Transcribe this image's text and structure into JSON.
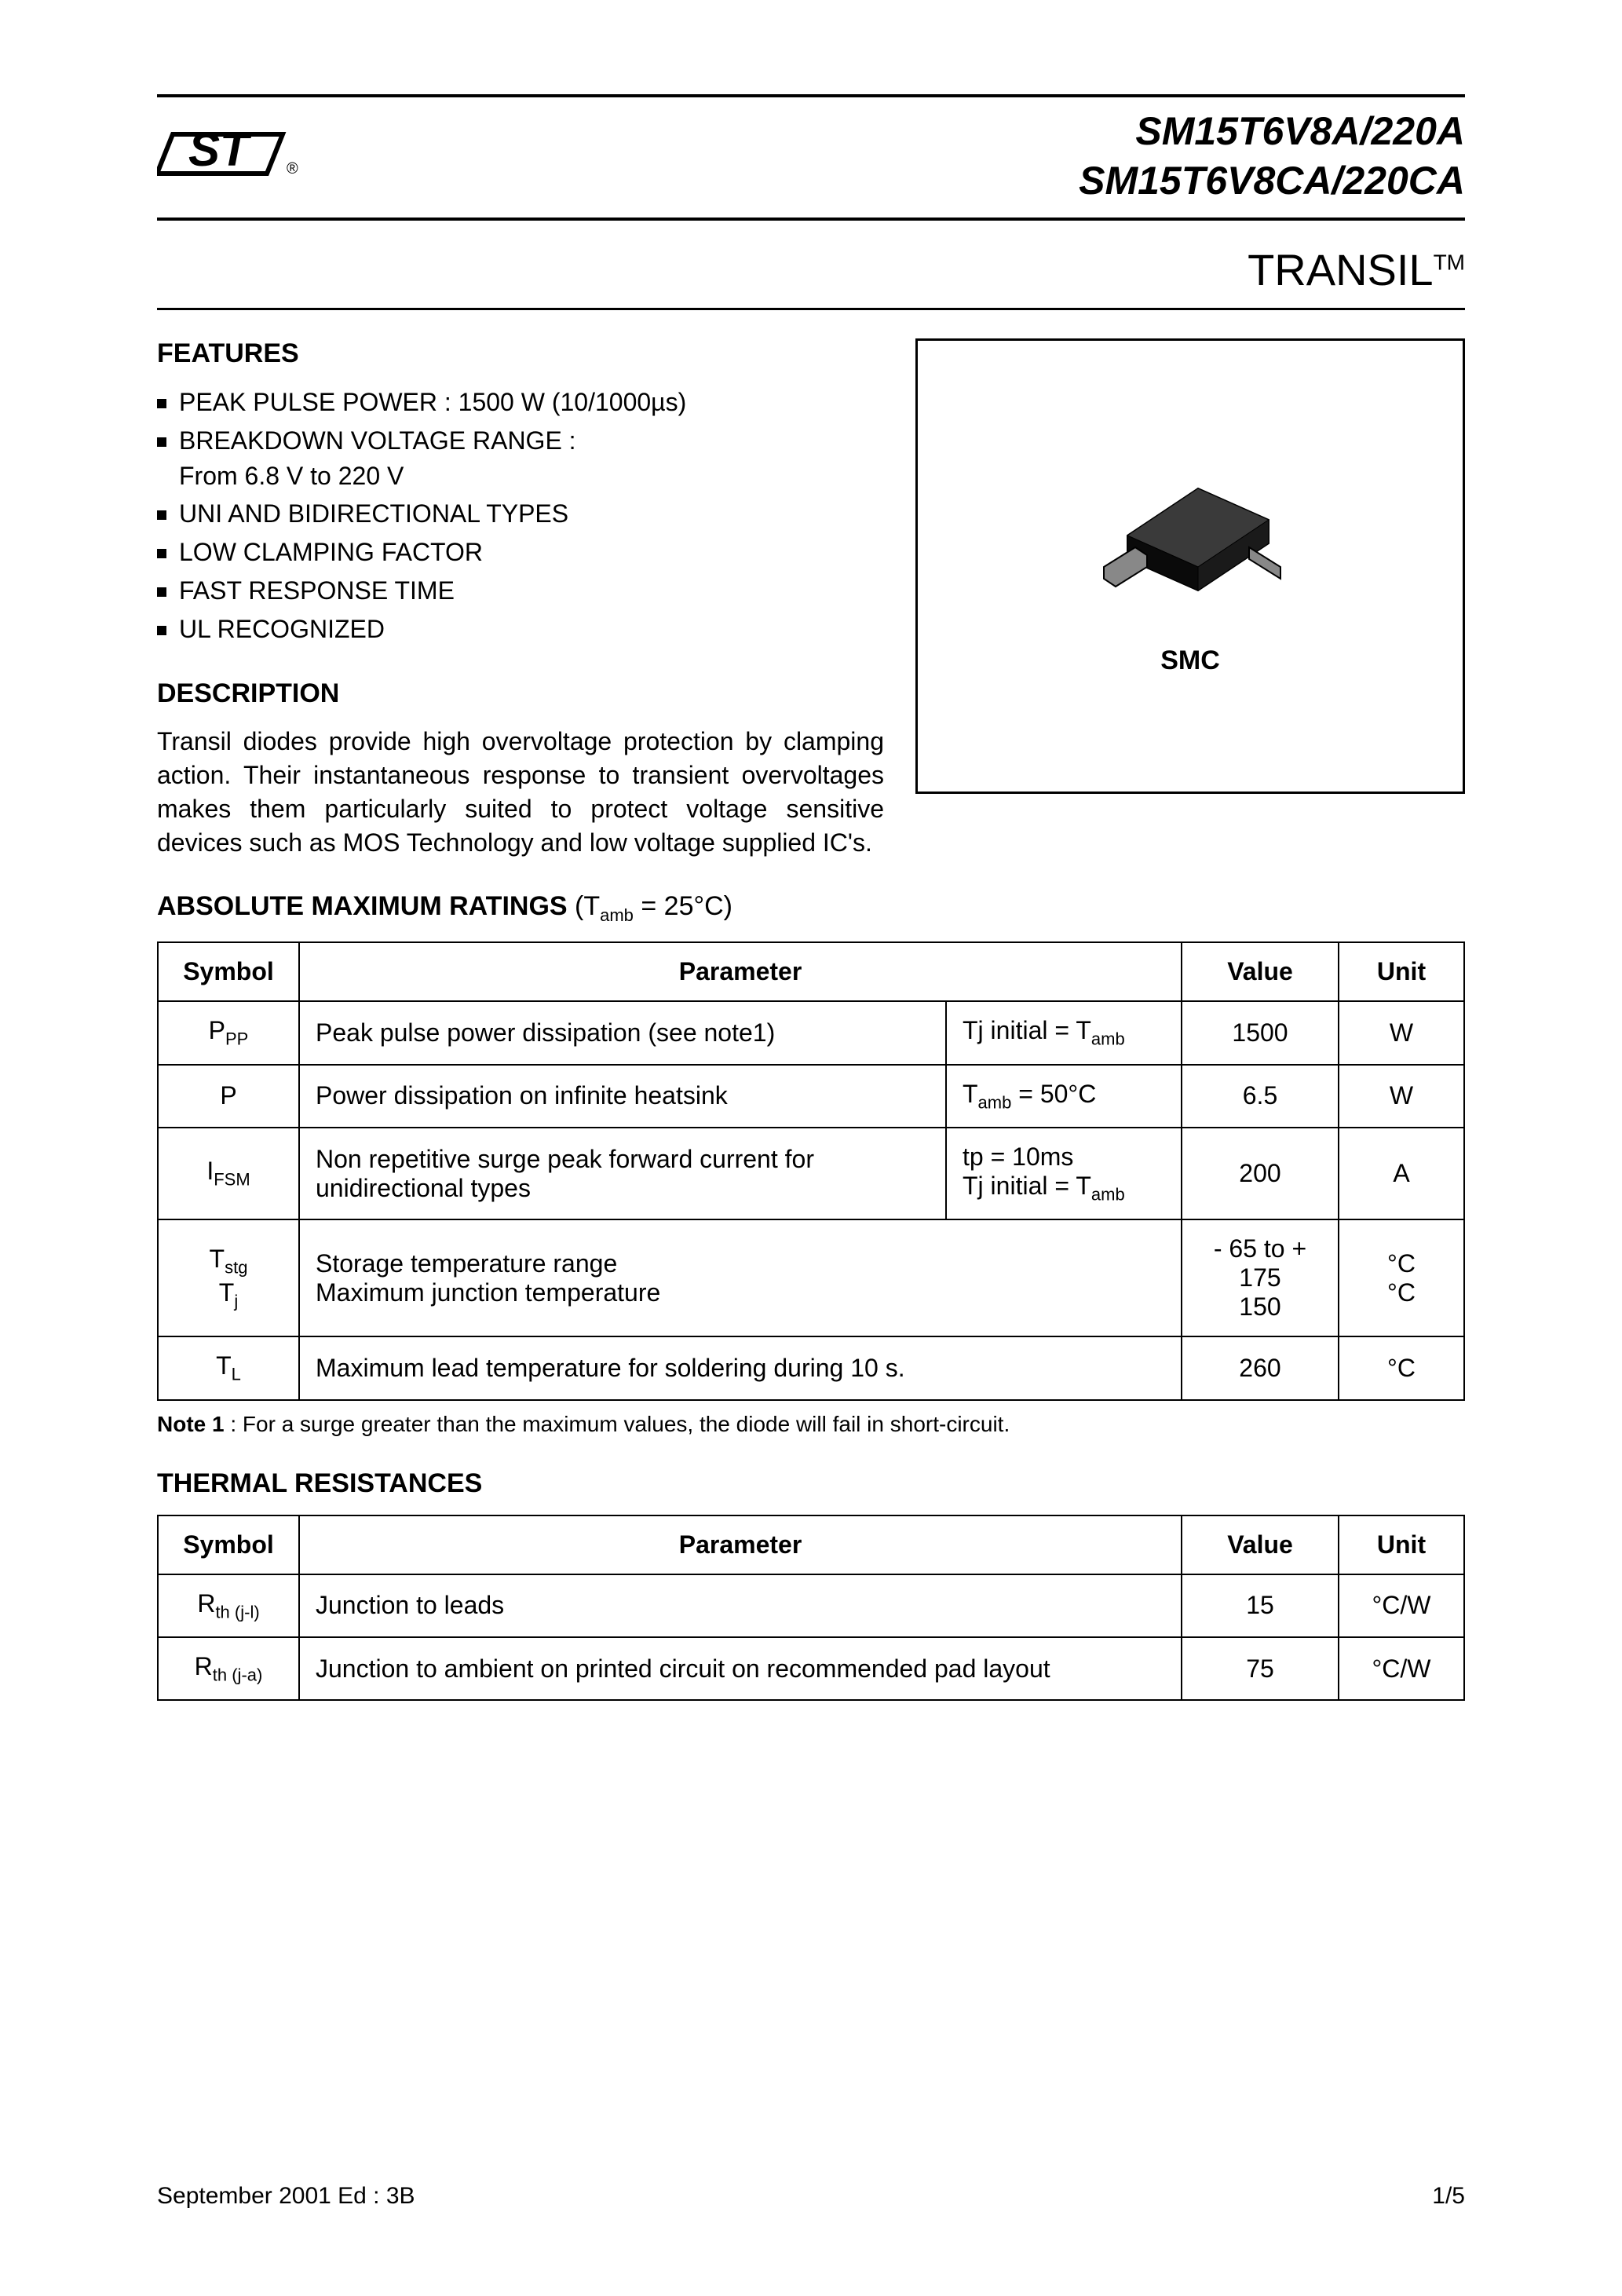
{
  "header": {
    "part_line1": "SM15T6V8A/220A",
    "part_line2": "SM15T6V8CA/220CA"
  },
  "subtitle": {
    "text": "TRANSIL",
    "tm": "TM"
  },
  "features": {
    "title": "FEATURES",
    "items": [
      "PEAK PULSE POWER : 1500 W  (10/1000µs)",
      "BREAKDOWN VOLTAGE RANGE :\nFrom 6.8 V to 220 V",
      "UNI AND BIDIRECTIONAL TYPES",
      "LOW CLAMPING FACTOR",
      "FAST RESPONSE TIME",
      "UL RECOGNIZED"
    ]
  },
  "description": {
    "title": "DESCRIPTION",
    "text": "Transil diodes provide high overvoltage protection by clamping action. Their instantaneous response to transient overvoltages makes them particularly suited to protect voltage sensitive devices such as MOS Technology and low voltage supplied IC's."
  },
  "package": {
    "label": "SMC"
  },
  "abs_max": {
    "title": "ABSOLUTE MAXIMUM RATINGS",
    "condition": "(Tamb = 25°C)",
    "columns": [
      "Symbol",
      "Parameter",
      "Value",
      "Unit"
    ],
    "rows": [
      {
        "symbol_html": "P<sub class='sub'>PP</sub>",
        "param": "Peak pulse power dissipation  (see note1)",
        "cond_html": "Tj initial = T<sub class='sub'>amb</sub>",
        "value": "1500",
        "unit": "W"
      },
      {
        "symbol_html": "P",
        "param": "Power dissipation on infinite heatsink",
        "cond_html": "T<sub class='sub'>amb</sub> = 50°C",
        "value": "6.5",
        "unit": "W"
      },
      {
        "symbol_html": "I<sub class='sub'>FSM</sub>",
        "param": "Non repetitive surge peak forward current for unidirectional types",
        "cond_html": "tp = 10ms<br>Tj initial = T<sub class='sub'>amb</sub>",
        "value": "200",
        "unit": "A"
      },
      {
        "symbol_html": "T<sub class='sub'>stg</sub><br>T<sub class='sub'>j</sub>",
        "param": "Storage temperature range\nMaximum junction temperature",
        "cond_html": "",
        "value": "- 65 to + 175\n150",
        "unit": "°C\n°C",
        "span_cond": true
      },
      {
        "symbol_html": "T<sub class='sub'>L</sub>",
        "param": "Maximum lead temperature for soldering during 10 s.",
        "cond_html": "",
        "value": "260",
        "unit": "°C",
        "span_cond": true
      }
    ],
    "note": "Note 1 : For a surge greater than the maximum values, the diode will fail in short-circuit."
  },
  "thermal": {
    "title": "THERMAL RESISTANCES",
    "columns": [
      "Symbol",
      "Parameter",
      "Value",
      "Unit"
    ],
    "rows": [
      {
        "symbol_html": "R<sub class='sub'>th (j-l)</sub>",
        "param": "Junction to leads",
        "value": "15",
        "unit": "°C/W"
      },
      {
        "symbol_html": "R<sub class='sub'>th (j-a)</sub>",
        "param": "Junction to ambient on printed circuit on recommended pad layout",
        "value": "75",
        "unit": "°C/W"
      }
    ]
  },
  "footer": {
    "left": "September 2001  Ed : 3B",
    "right": "1/5"
  },
  "colors": {
    "text": "#000000",
    "bg": "#ffffff",
    "border": "#000000"
  }
}
